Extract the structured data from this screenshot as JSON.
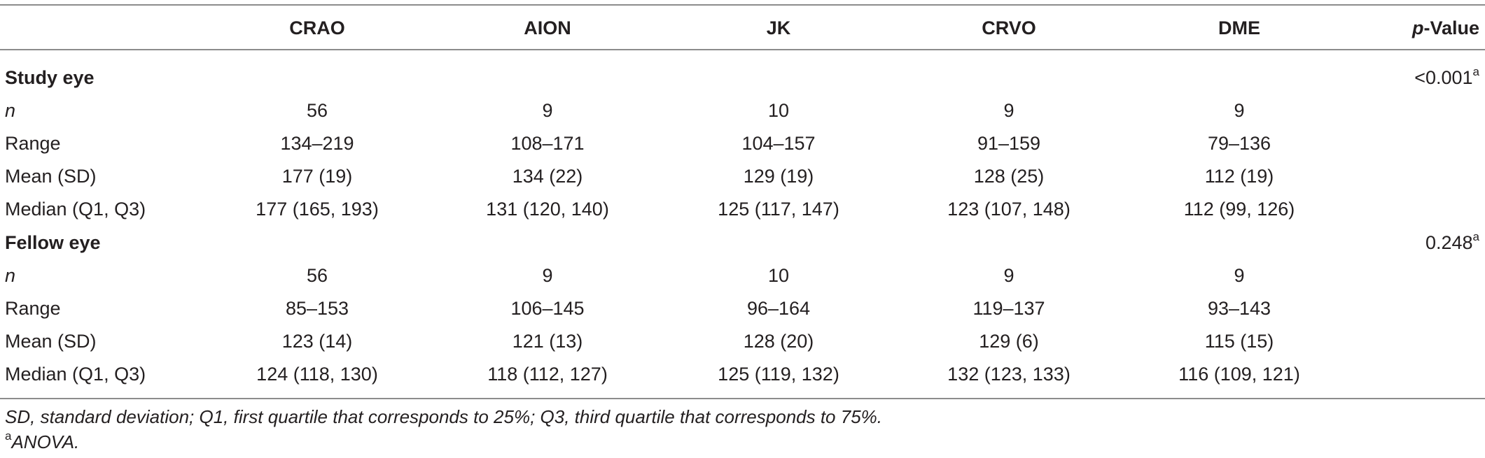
{
  "table": {
    "columns": [
      "",
      "CRAO",
      "AION",
      "JK",
      "CRVO",
      "DME",
      "p-Value"
    ],
    "pvalue_header": {
      "prefix": "p",
      "suffix": "-Value"
    },
    "sections": [
      {
        "title": "Study eye",
        "p_value": "<0.001",
        "p_value_note": "a",
        "rows": [
          {
            "label": "n",
            "italic": true,
            "values": [
              "56",
              "9",
              "10",
              "9",
              "9"
            ]
          },
          {
            "label": "Range",
            "italic": false,
            "values": [
              "134–219",
              "108–171",
              "104–157",
              "91–159",
              "79–136"
            ]
          },
          {
            "label": "Mean (SD)",
            "italic": false,
            "values": [
              "177 (19)",
              "134 (22)",
              "129 (19)",
              "128 (25)",
              "112 (19)"
            ]
          },
          {
            "label": "Median (Q1, Q3)",
            "italic": false,
            "values": [
              "177 (165, 193)",
              "131 (120, 140)",
              "125 (117, 147)",
              "123 (107, 148)",
              "112 (99, 126)"
            ]
          }
        ]
      },
      {
        "title": "Fellow eye",
        "p_value": "0.248",
        "p_value_note": "a",
        "rows": [
          {
            "label": "n",
            "italic": true,
            "values": [
              "56",
              "9",
              "10",
              "9",
              "9"
            ]
          },
          {
            "label": "Range",
            "italic": false,
            "values": [
              "85–153",
              "106–145",
              "96–164",
              "119–137",
              "93–143"
            ]
          },
          {
            "label": "Mean (SD)",
            "italic": false,
            "values": [
              "123 (14)",
              "121 (13)",
              "128 (20)",
              "129 (6)",
              "115 (15)"
            ]
          },
          {
            "label": "Median (Q1, Q3)",
            "italic": false,
            "values": [
              "124 (118, 130)",
              "118 (112, 127)",
              "125 (119, 132)",
              "132 (123, 133)",
              "116 (109, 121)"
            ]
          }
        ]
      }
    ]
  },
  "footnotes": {
    "abbreviations": "SD, standard deviation; Q1, first quartile that corresponds to 25%; Q3, third quartile that corresponds to 75%.",
    "note_marker": "a",
    "note_text": "ANOVA."
  }
}
